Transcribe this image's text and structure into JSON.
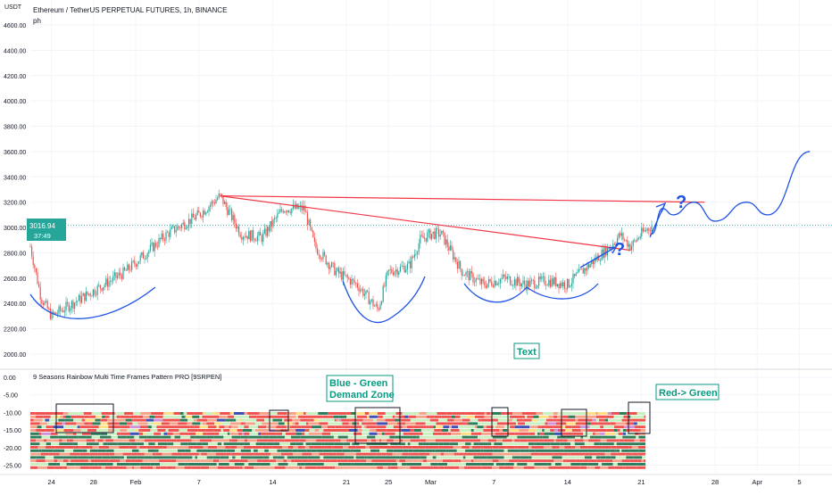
{
  "header": {
    "symbol_title": "Ethereum / TetherUS PERPETUAL FUTURES, 1h, BINANCE",
    "sub_label": "ph",
    "currency": "USDT"
  },
  "price_badge": {
    "price": "3016.94",
    "countdown": "37:49"
  },
  "indicator": {
    "title": "9 Seasons Rainbow Multi Time Frames Pattern PRO [9SRPEN]"
  },
  "annotations": {
    "text_box": "Text",
    "demand_zone_line1": "Blue - Green",
    "demand_zone_line2": "Demand Zone",
    "red_green": "Red-> Green",
    "question_marks": [
      "?",
      "?"
    ]
  },
  "colors": {
    "up": "#26a69a",
    "down": "#ef5350",
    "projection": "#1e53e5",
    "trendline": "#f23645",
    "badge": "#26a69a",
    "annotation": "#089981"
  },
  "chart_data": [
    {
      "type": "candlestick",
      "title": "Ethereum / TetherUS PERPETUAL FUTURES, 1h, BINANCE",
      "ylabel": "USDT",
      "yticks": [
        2000,
        2200,
        2400,
        2600,
        2800,
        3000,
        3200,
        3400,
        3600,
        3800,
        4000,
        4200,
        4400,
        4600
      ],
      "ytick_labels": [
        "2000.00",
        "2200.00",
        "2400.00",
        "2600.00",
        "2800.00",
        "3000.00",
        "3200.00",
        "3400.00",
        "3600.00",
        "3800.00",
        "4000.00",
        "4200.00",
        "4400.00",
        "4600.00"
      ],
      "ylim": [
        1960,
        4700
      ],
      "x_tick_labels": [
        "24",
        "28",
        "Feb",
        "7",
        "14",
        "21",
        "25",
        "Mar",
        "7",
        "14",
        "21",
        "28",
        "Apr",
        "5"
      ],
      "last_price": 3016.94,
      "close_path": [
        {
          "x": "Jan 22",
          "y": 2850
        },
        {
          "x": "Jan 23",
          "y": 2450
        },
        {
          "x": "Jan 24",
          "y": 2300
        },
        {
          "x": "Jan 25",
          "y": 2350
        },
        {
          "x": "Jan 27",
          "y": 2450
        },
        {
          "x": "Jan 29",
          "y": 2550
        },
        {
          "x": "Jan 31",
          "y": 2650
        },
        {
          "x": "Feb 2",
          "y": 2800
        },
        {
          "x": "Feb 4",
          "y": 2950
        },
        {
          "x": "Feb 7",
          "y": 3100
        },
        {
          "x": "Feb 9",
          "y": 3250
        },
        {
          "x": "Feb 10",
          "y": 3100
        },
        {
          "x": "Feb 11",
          "y": 2950
        },
        {
          "x": "Feb 13",
          "y": 2920
        },
        {
          "x": "Feb 15",
          "y": 3150
        },
        {
          "x": "Feb 17",
          "y": 3150
        },
        {
          "x": "Feb 18",
          "y": 2850
        },
        {
          "x": "Feb 20",
          "y": 2650
        },
        {
          "x": "Feb 22",
          "y": 2550
        },
        {
          "x": "Feb 24",
          "y": 2350
        },
        {
          "x": "Feb 25",
          "y": 2650
        },
        {
          "x": "Feb 27",
          "y": 2700
        },
        {
          "x": "Feb 28",
          "y": 2900
        },
        {
          "x": "Mar 1",
          "y": 2950
        },
        {
          "x": "Mar 2",
          "y": 2950
        },
        {
          "x": "Mar 4",
          "y": 2650
        },
        {
          "x": "Mar 6",
          "y": 2550
        },
        {
          "x": "Mar 8",
          "y": 2600
        },
        {
          "x": "Mar 10",
          "y": 2550
        },
        {
          "x": "Mar 12",
          "y": 2580
        },
        {
          "x": "Mar 14",
          "y": 2550
        },
        {
          "x": "Mar 16",
          "y": 2700
        },
        {
          "x": "Mar 18",
          "y": 2850
        },
        {
          "x": "Mar 19",
          "y": 2940
        },
        {
          "x": "Mar 20",
          "y": 2850
        },
        {
          "x": "Mar 21",
          "y": 2950
        },
        {
          "x": "Mar 22",
          "y": 3017
        }
      ],
      "overlays": {
        "resistance_line": {
          "from": {
            "x": "Feb 9",
            "y": 3250
          },
          "to": {
            "x": "Mar 27",
            "y": 3200
          }
        },
        "descending_neckline": {
          "from": {
            "x": "Feb 9",
            "y": 3250
          },
          "to": {
            "x": "Mar 20",
            "y": 2820
          }
        },
        "projection_path": [
          {
            "x": "Mar 22",
            "y": 2950
          },
          {
            "x": "Mar 23",
            "y": 3150
          },
          {
            "x": "Mar 24",
            "y": 3100
          },
          {
            "x": "Mar 26",
            "y": 3200
          },
          {
            "x": "Mar 28",
            "y": 3050
          },
          {
            "x": "Mar 31",
            "y": 3200
          },
          {
            "x": "Apr 2",
            "y": 3100
          },
          {
            "x": "Apr 6",
            "y": 3600
          }
        ]
      }
    },
    {
      "type": "heatmap",
      "title": "9 Seasons Rainbow Multi Time Frames Pattern PRO [9SRPEN]",
      "yticks": [
        0,
        -5,
        -10,
        -15,
        -20,
        -25
      ],
      "ytick_labels": [
        "0.00",
        "-5.00",
        "-10.00",
        "-15.00",
        "-20.00",
        "-25.00"
      ],
      "ylim": [
        -27,
        1
      ],
      "rows_count": 17,
      "row_palette": [
        "#ef5350",
        "#f7a38a",
        "#c8f0c0",
        "#2e7d5b",
        "#ffe082",
        "#3f51b5",
        "#ce93d8"
      ]
    }
  ]
}
